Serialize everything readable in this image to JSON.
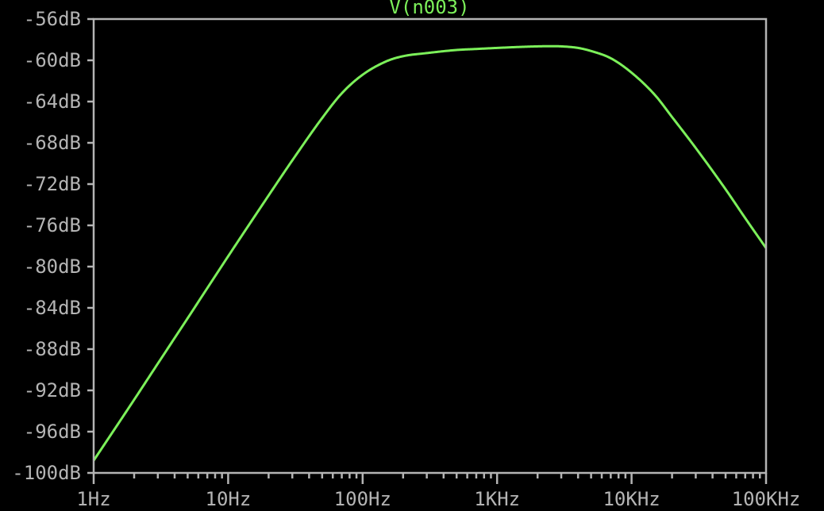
{
  "chart_data": {
    "type": "line",
    "title": "V(n003)",
    "xlabel": "",
    "ylabel": "",
    "x_scale": "log",
    "xlim": [
      1,
      100000
    ],
    "ylim": [
      -100,
      -56
    ],
    "grid": false,
    "colors": {
      "background": "#000000",
      "axis": "#b4b4b4",
      "trace": "#7cf05a"
    },
    "x_ticks": [
      {
        "value": 1,
        "label": "1Hz"
      },
      {
        "value": 10,
        "label": "10Hz"
      },
      {
        "value": 100,
        "label": "100Hz"
      },
      {
        "value": 1000,
        "label": "1KHz"
      },
      {
        "value": 10000,
        "label": "10KHz"
      },
      {
        "value": 100000,
        "label": "100KHz"
      }
    ],
    "y_ticks": [
      {
        "value": -56,
        "label": "-56dB"
      },
      {
        "value": -60,
        "label": "-60dB"
      },
      {
        "value": -64,
        "label": "-64dB"
      },
      {
        "value": -68,
        "label": "-68dB"
      },
      {
        "value": -72,
        "label": "-72dB"
      },
      {
        "value": -76,
        "label": "-76dB"
      },
      {
        "value": -80,
        "label": "-80dB"
      },
      {
        "value": -84,
        "label": "-84dB"
      },
      {
        "value": -88,
        "label": "-88dB"
      },
      {
        "value": -92,
        "label": "-92dB"
      },
      {
        "value": -96,
        "label": "-96dB"
      },
      {
        "value": -100,
        "label": "-100dB"
      }
    ],
    "series": [
      {
        "name": "V(n003)",
        "x": [
          1,
          2,
          3,
          5,
          10,
          20,
          30,
          50,
          70,
          100,
          150,
          200,
          300,
          500,
          700,
          1000,
          1500,
          2000,
          2500,
          3000,
          4000,
          5000,
          7000,
          10000,
          15000,
          20000,
          30000,
          50000,
          70000,
          100000
        ],
        "y": [
          -98.8,
          -92.9,
          -89.4,
          -85.0,
          -79.0,
          -73.1,
          -69.7,
          -65.6,
          -63.2,
          -61.4,
          -60.1,
          -59.6,
          -59.3,
          -59.0,
          -58.9,
          -58.8,
          -58.7,
          -58.65,
          -58.63,
          -58.65,
          -58.8,
          -59.1,
          -59.8,
          -61.2,
          -63.4,
          -65.5,
          -68.5,
          -72.5,
          -75.3,
          -78.2
        ]
      }
    ]
  }
}
